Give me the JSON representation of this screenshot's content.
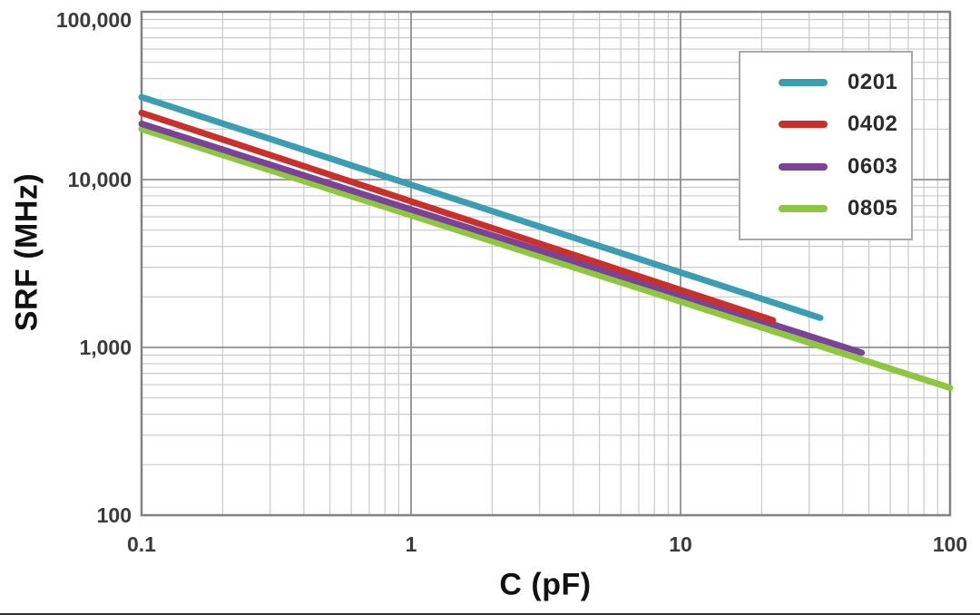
{
  "chart_data": {
    "type": "line",
    "title": "",
    "xlabel": "C (pF)",
    "ylabel": "SRF (MHz)",
    "x_scale": "log",
    "y_scale": "log",
    "xlim": [
      0.1,
      100
    ],
    "ylim": [
      100,
      100000
    ],
    "grid": "log major and minor gridlines, both axes",
    "legend_position": "top-right inset box",
    "x_ticks": [
      {
        "value": 0.1,
        "label": "0.1"
      },
      {
        "value": 1,
        "label": "1"
      },
      {
        "value": 10,
        "label": "10"
      },
      {
        "value": 100,
        "label": "100"
      }
    ],
    "y_ticks": [
      {
        "value": 100,
        "label": "100"
      },
      {
        "value": 1000,
        "label": "1,000"
      },
      {
        "value": 10000,
        "label": "10,000"
      },
      {
        "value": 100000,
        "label": "100,000"
      }
    ],
    "series": [
      {
        "name": "0201",
        "color": "#3A9DB2",
        "points": [
          [
            0.1,
            31000
          ],
          [
            33,
            1500
          ]
        ]
      },
      {
        "name": "0402",
        "color": "#C8302C",
        "points": [
          [
            0.1,
            25000
          ],
          [
            22,
            1450
          ]
        ]
      },
      {
        "name": "0603",
        "color": "#7B4398",
        "points": [
          [
            0.1,
            21500
          ],
          [
            47,
            930
          ]
        ]
      },
      {
        "name": "0805",
        "color": "#8DC63F",
        "points": [
          [
            0.1,
            20000
          ],
          [
            100,
            575
          ]
        ]
      }
    ]
  },
  "colors": {
    "background": "#ffffff",
    "grid_minor": "#c9c9c9",
    "grid_major": "#8f8f8f",
    "plot_border": "#828282",
    "tick_text": "#3b3b3b",
    "axis_title_text": "#111111",
    "legend_border": "#a9a9a9",
    "bottom_rule": "#2e2e2e"
  }
}
